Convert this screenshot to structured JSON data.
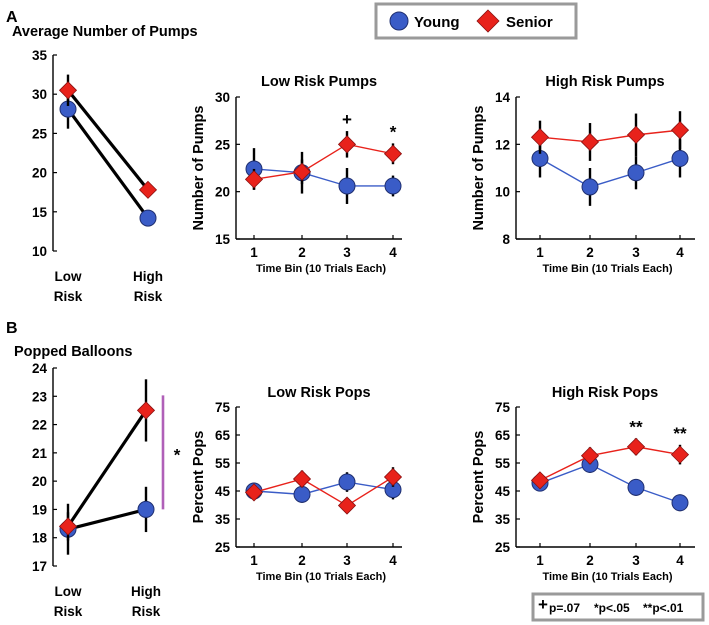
{
  "panel_labels": {
    "a": "A",
    "b": "B"
  },
  "legend": {
    "young_label": "Young",
    "senior_label": "Senior",
    "young_color": "#3a5cc7",
    "senior_color": "#e8221b"
  },
  "footnote": {
    "text_plus": "p=.07",
    "text_single": "*p<.05",
    "text_double": "**p<.01"
  },
  "chart_data": [
    {
      "id": "avg-pumps",
      "type": "line",
      "title": "Average Number of Pumps",
      "categories": [
        "Low\nRisk",
        "High\nRisk"
      ],
      "ylim": [
        10,
        35
      ],
      "yticks": [
        10,
        15,
        20,
        25,
        30,
        35
      ],
      "series": [
        {
          "name": "Young",
          "values": [
            28.1,
            14.2
          ],
          "err": [
            2.5,
            0.9
          ]
        },
        {
          "name": "Senior",
          "values": [
            30.5,
            17.8
          ],
          "err": [
            2.0,
            0.9
          ]
        }
      ]
    },
    {
      "id": "low-risk-pumps",
      "type": "line",
      "title": "Low Risk Pumps",
      "xlabel": "Time Bin (10 Trials Each)",
      "ylabel": "Number of Pumps",
      "categories": [
        "1",
        "2",
        "3",
        "4"
      ],
      "ylim": [
        15,
        30
      ],
      "yticks": [
        15,
        20,
        25,
        30
      ],
      "series": [
        {
          "name": "Young",
          "values": [
            22.4,
            22.0,
            20.6,
            20.6
          ],
          "err": [
            2.2,
            2.2,
            1.9,
            1.1
          ]
        },
        {
          "name": "Senior",
          "values": [
            21.3,
            22.1,
            25.0,
            24.0
          ],
          "err": [
            1.1,
            1.3,
            1.4,
            1.1
          ]
        }
      ],
      "annotations": [
        {
          "category": "3",
          "text": "+"
        },
        {
          "category": "4",
          "text": "*"
        }
      ]
    },
    {
      "id": "high-risk-pumps",
      "type": "line",
      "title": "High Risk Pumps",
      "ylabel": "Number of Pumps",
      "xlabel": "Time Bin (10 Trials Each)",
      "categories": [
        "1",
        "2",
        "3",
        "4"
      ],
      "ylim": [
        8,
        14
      ],
      "yticks": [
        8,
        10,
        12,
        14
      ],
      "series": [
        {
          "name": "Young",
          "values": [
            11.4,
            10.2,
            10.8,
            11.4
          ],
          "err": [
            0.8,
            0.8,
            0.7,
            0.8
          ]
        },
        {
          "name": "Senior",
          "values": [
            12.3,
            12.1,
            12.4,
            12.6
          ],
          "err": [
            0.7,
            0.8,
            0.9,
            0.8
          ]
        }
      ]
    },
    {
      "id": "popped-balloons",
      "type": "line",
      "title": "Popped Balloons",
      "categories": [
        "Low\nRisk",
        "High\nRisk"
      ],
      "ylim": [
        17,
        24
      ],
      "yticks": [
        17,
        18,
        19,
        20,
        21,
        22,
        23,
        24
      ],
      "series": [
        {
          "name": "Young",
          "values": [
            18.3,
            19.0
          ],
          "err": [
            0.9,
            0.8
          ]
        },
        {
          "name": "Senior",
          "values": [
            18.4,
            22.5
          ],
          "err": [
            0.5,
            1.1
          ]
        }
      ],
      "annotations": [
        {
          "text": "*"
        }
      ]
    },
    {
      "id": "low-risk-pops",
      "type": "line",
      "title": "Low Risk Pops",
      "ylabel": "Percent Pops",
      "xlabel": "Time Bin (10 Trials Each)",
      "categories": [
        "1",
        "2",
        "3",
        "4"
      ],
      "ylim": [
        25,
        75
      ],
      "yticks": [
        25,
        35,
        45,
        55,
        65,
        75
      ],
      "series": [
        {
          "name": "Young",
          "values": [
            45.0,
            43.8,
            48.2,
            45.5
          ],
          "err": [
            3.0,
            3.0,
            3.5,
            3.5
          ]
        },
        {
          "name": "Senior",
          "values": [
            44.5,
            49.3,
            39.8,
            50.0
          ],
          "err": [
            2.5,
            3.0,
            2.5,
            3.5
          ]
        }
      ]
    },
    {
      "id": "high-risk-pops",
      "type": "line",
      "title": "High Risk Pops",
      "ylabel": "Percent Pops",
      "xlabel": "Time Bin (10 Trials Each)",
      "categories": [
        "1",
        "2",
        "3",
        "4"
      ],
      "ylim": [
        25,
        75
      ],
      "yticks": [
        25,
        35,
        45,
        55,
        65,
        75
      ],
      "series": [
        {
          "name": "Young",
          "values": [
            47.8,
            54.5,
            46.3,
            40.8
          ],
          "err": [
            2.5,
            3.0,
            3.0,
            3.0
          ]
        },
        {
          "name": "Senior",
          "values": [
            48.8,
            57.6,
            60.8,
            58.0
          ],
          "err": [
            2.5,
            3.0,
            3.0,
            3.5
          ]
        }
      ],
      "annotations": [
        {
          "category": "3",
          "text": "**"
        },
        {
          "category": "4",
          "text": "**"
        }
      ]
    }
  ]
}
